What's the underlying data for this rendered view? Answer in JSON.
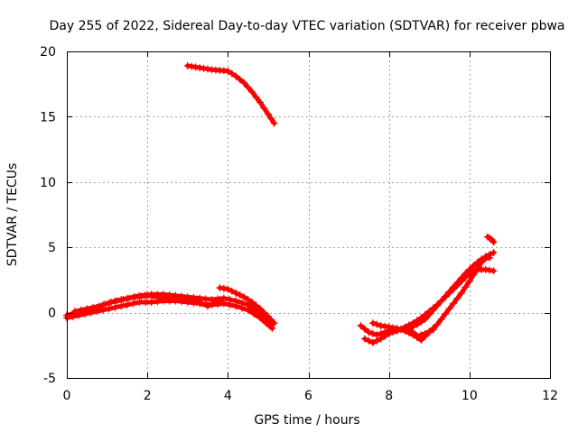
{
  "chart_data": {
    "type": "scatter",
    "title": "Day 255 of 2022, Sidereal Day-to-day VTEC variation (SDTVAR) for receiver pbwa",
    "xlabel": "GPS time / hours",
    "ylabel": "SDTVAR / TECUs",
    "xlim": [
      0,
      12
    ],
    "ylim": [
      -5,
      20
    ],
    "xticks": [
      0,
      2,
      4,
      6,
      8,
      10,
      12
    ],
    "yticks": [
      -5,
      0,
      5,
      10,
      15,
      20
    ],
    "grid": true,
    "legend": "none",
    "marker": "+",
    "color": "#ff0000",
    "series": [
      {
        "name": "track-early-low-a",
        "x": [
          0.0,
          0.3,
          0.6,
          0.9,
          1.2,
          1.5,
          1.8,
          2.1,
          2.4,
          2.7,
          3.0,
          3.3,
          3.6,
          3.9,
          4.2,
          4.5,
          4.8,
          5.1
        ],
        "y": [
          -0.2,
          0.0,
          0.2,
          0.6,
          0.9,
          1.1,
          1.3,
          1.4,
          1.4,
          1.3,
          1.2,
          1.1,
          1.0,
          1.1,
          0.9,
          0.6,
          0.0,
          -0.9
        ]
      },
      {
        "name": "track-early-low-b",
        "x": [
          0.0,
          0.3,
          0.6,
          0.9,
          1.2,
          1.5,
          1.8,
          2.1,
          2.4,
          2.7,
          3.0,
          3.3,
          3.6,
          3.9,
          4.2,
          4.5,
          4.8,
          5.1
        ],
        "y": [
          -0.4,
          -0.2,
          0.0,
          0.2,
          0.4,
          0.6,
          0.8,
          0.8,
          0.9,
          0.9,
          0.8,
          0.7,
          0.6,
          0.7,
          0.5,
          0.2,
          -0.4,
          -1.2
        ]
      },
      {
        "name": "track-early-low-c",
        "x": [
          0.2,
          0.5,
          0.8,
          1.1,
          1.4,
          1.7,
          2.0,
          2.3,
          2.6,
          2.9,
          3.2,
          3.5,
          3.8
        ],
        "y": [
          0.1,
          0.3,
          0.5,
          0.8,
          1.0,
          1.2,
          1.3,
          1.2,
          1.1,
          1.0,
          0.9,
          0.5,
          0.9
        ]
      },
      {
        "name": "track-mid-upper",
        "x": [
          3.8,
          4.0,
          4.2,
          4.4,
          4.6,
          4.8,
          5.0,
          5.15
        ],
        "y": [
          1.9,
          1.8,
          1.5,
          1.2,
          0.8,
          0.3,
          -0.3,
          -0.8
        ]
      },
      {
        "name": "track-high",
        "x": [
          3.0,
          3.2,
          3.4,
          3.6,
          3.8,
          4.0,
          4.2,
          4.4,
          4.6,
          4.8,
          5.0,
          5.15
        ],
        "y": [
          18.9,
          18.8,
          18.7,
          18.6,
          18.55,
          18.5,
          18.1,
          17.6,
          16.9,
          16.1,
          15.2,
          14.5
        ]
      },
      {
        "name": "track-late-a",
        "x": [
          7.3,
          7.5,
          7.7,
          7.9,
          8.1,
          8.3,
          8.5,
          8.7,
          8.9,
          9.1,
          9.3,
          9.5,
          9.7,
          9.9,
          10.1,
          10.3,
          10.5
        ],
        "y": [
          -1.0,
          -1.5,
          -1.7,
          -1.5,
          -1.3,
          -1.3,
          -1.2,
          -0.9,
          -0.5,
          0.2,
          0.9,
          1.6,
          2.3,
          3.0,
          3.6,
          4.1,
          4.2
        ]
      },
      {
        "name": "track-late-b",
        "x": [
          7.4,
          7.6,
          7.8,
          8.0,
          8.2,
          8.4,
          8.6,
          8.8,
          9.0,
          9.2,
          9.4,
          9.6,
          9.8,
          10.0,
          10.2,
          10.4,
          10.6
        ],
        "y": [
          -2.0,
          -2.3,
          -2.0,
          -1.6,
          -1.4,
          -1.1,
          -0.8,
          -0.4,
          0.1,
          0.6,
          1.2,
          1.8,
          2.4,
          3.0,
          3.3,
          3.3,
          3.2
        ]
      },
      {
        "name": "track-late-c",
        "x": [
          7.6,
          7.8,
          8.0,
          8.2,
          8.4,
          8.6,
          8.8,
          9.0,
          9.2,
          9.4,
          9.6,
          9.8,
          10.0,
          10.2,
          10.4,
          10.6
        ],
        "y": [
          -0.8,
          -1.0,
          -1.1,
          -1.2,
          -1.4,
          -1.7,
          -2.1,
          -1.5,
          -0.9,
          -0.1,
          0.7,
          1.5,
          2.4,
          3.4,
          4.3,
          4.6
        ]
      },
      {
        "name": "track-late-d",
        "x": [
          8.5,
          8.7,
          8.9,
          9.1
        ],
        "y": [
          -1.2,
          -1.8,
          -1.6,
          -1.3
        ]
      },
      {
        "name": "track-late-tail",
        "x": [
          10.45,
          10.55,
          10.6
        ],
        "y": [
          5.8,
          5.6,
          5.4
        ]
      }
    ]
  }
}
